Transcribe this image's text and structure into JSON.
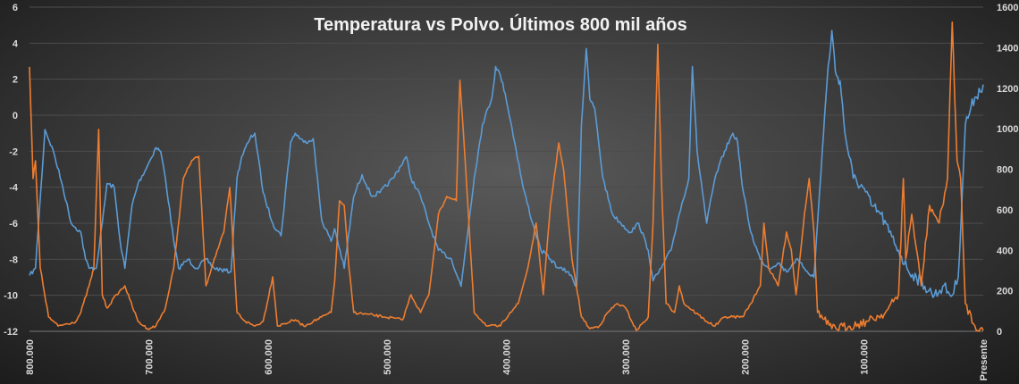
{
  "chart_data": {
    "type": "line",
    "title": "Temperatura vs Polvo.  Últimos 800 mil años",
    "xlabel": "",
    "ylabel": "",
    "x_tick_labels": [
      "800.000",
      "700.000",
      "600.000",
      "500.000",
      "400.000",
      "300.000",
      "200.000",
      "100.000",
      "Presente"
    ],
    "x_ticks": [
      800,
      700,
      600,
      500,
      400,
      300,
      200,
      100,
      0
    ],
    "xlim": [
      800,
      0
    ],
    "y_left": {
      "ylim": [
        -12,
        6
      ],
      "ticks": [
        -12,
        -10,
        -8,
        -6,
        -4,
        -2,
        0,
        2,
        4,
        6
      ]
    },
    "y_right": {
      "ylim": [
        0,
        1600
      ],
      "ticks": [
        0,
        200,
        400,
        600,
        800,
        1000,
        1200,
        1400,
        1600
      ]
    },
    "grid": true,
    "legend": "none",
    "colors": {
      "temperature": "#5b9bd5",
      "dust": "#ed7d31"
    },
    "series": [
      {
        "axis": "left",
        "color": "#5b9bd5",
        "x": [
          800,
          795,
          787,
          780,
          772,
          765,
          757,
          753,
          750,
          744,
          739,
          735,
          729,
          724,
          720,
          714,
          709,
          701,
          694,
          690,
          686,
          679,
          675,
          667,
          660,
          652,
          645,
          631,
          626,
          622,
          615,
          611,
          604,
          596,
          589,
          581,
          577,
          570,
          562,
          555,
          547,
          544,
          536,
          528,
          521,
          513,
          506,
          495,
          484,
          480,
          472,
          465,
          457,
          446,
          438,
          427,
          420,
          412,
          409,
          405,
          401,
          393,
          386,
          378,
          371,
          363,
          356,
          348,
          341,
          337,
          333,
          330,
          326,
          319,
          311,
          304,
          296,
          289,
          281,
          277,
          270,
          262,
          255,
          247,
          244,
          240,
          232,
          225,
          217,
          210,
          206,
          202,
          195,
          187,
          180,
          172,
          165,
          157,
          150,
          142,
          135,
          131,
          127,
          124,
          120,
          116,
          109,
          101,
          94,
          86,
          79,
          71,
          64,
          56,
          49,
          41,
          34,
          26,
          21,
          15,
          7,
          0
        ],
        "y": [
          -8.9,
          -8.5,
          -0.8,
          -2.0,
          -4.0,
          -6.0,
          -6.5,
          -8.0,
          -8.5,
          -8.5,
          -6.0,
          -3.8,
          -4.0,
          -7.0,
          -8.5,
          -5.0,
          -3.8,
          -2.8,
          -1.8,
          -2.0,
          -3.5,
          -7.0,
          -8.5,
          -8.0,
          -8.5,
          -8.0,
          -8.5,
          -8.7,
          -3.5,
          -2.3,
          -1.3,
          -1.0,
          -4.3,
          -6.0,
          -6.7,
          -1.5,
          -1.0,
          -1.5,
          -1.3,
          -5.8,
          -7.0,
          -6.3,
          -8.5,
          -4.5,
          -3.3,
          -4.5,
          -4.3,
          -3.5,
          -2.3,
          -3.5,
          -4.5,
          -6.0,
          -7.5,
          -8.0,
          -9.5,
          -3.5,
          -0.5,
          1.0,
          2.7,
          2.2,
          1.2,
          -1.5,
          -4.0,
          -6.0,
          -7.5,
          -8.0,
          -8.5,
          -8.7,
          -9.5,
          -0.5,
          3.7,
          0.9,
          0.4,
          -3.5,
          -5.5,
          -6.0,
          -6.5,
          -6.0,
          -7.5,
          -9.2,
          -8.5,
          -7.5,
          -5.5,
          -3.5,
          2.7,
          -2.0,
          -6.0,
          -3.5,
          -2.0,
          -1.0,
          -1.5,
          -4.0,
          -6.5,
          -8.0,
          -8.5,
          -8.2,
          -8.7,
          -8.0,
          -8.5,
          -9.0,
          -2.0,
          1.9,
          4.7,
          2.4,
          1.9,
          -1.0,
          -3.5,
          -4.0,
          -5.0,
          -5.5,
          -6.5,
          -7.5,
          -8.5,
          -9.0,
          -9.5,
          -10.0,
          -9.5,
          -10.0,
          -9.0,
          -0.5,
          1.0,
          1.7
        ]
      },
      {
        "axis": "right",
        "color": "#ed7d31",
        "x": [
          800,
          797,
          795,
          791,
          784,
          776,
          761,
          757,
          750,
          746,
          742,
          739,
          735,
          727,
          720,
          716,
          709,
          701,
          694,
          686,
          679,
          671,
          664,
          658,
          652,
          645,
          637,
          632,
          626,
          619,
          611,
          604,
          596,
          592,
          577,
          570,
          562,
          547,
          544,
          540,
          536,
          532,
          528,
          502,
          487,
          480,
          472,
          465,
          457,
          450,
          442,
          439,
          435,
          427,
          416,
          405,
          397,
          390,
          382,
          375,
          369,
          363,
          356,
          352,
          345,
          337,
          330,
          322,
          315,
          307,
          300,
          291,
          281,
          277,
          273,
          270,
          266,
          259,
          255,
          251,
          232,
          225,
          217,
          202,
          195,
          187,
          184,
          180,
          172,
          165,
          161,
          157,
          150,
          146,
          142,
          139,
          127,
          112,
          97,
          82,
          71,
          67,
          65,
          60,
          52,
          45,
          37,
          30,
          26,
          22,
          19,
          15,
          7,
          0
        ],
        "y": [
          1305,
          754,
          842,
          313,
          71,
          26,
          49,
          93,
          225,
          313,
          997,
          181,
          115,
          181,
          225,
          159,
          49,
          13,
          26,
          115,
          313,
          754,
          842,
          864,
          225,
          357,
          490,
          710,
          93,
          49,
          26,
          49,
          269,
          26,
          57,
          26,
          49,
          93,
          247,
          644,
          622,
          313,
          93,
          71,
          57,
          181,
          93,
          181,
          578,
          666,
          644,
          1239,
          886,
          93,
          26,
          26,
          93,
          137,
          313,
          534,
          181,
          622,
          930,
          798,
          357,
          71,
          13,
          26,
          93,
          137,
          115,
          4,
          71,
          534,
          1416,
          754,
          137,
          93,
          225,
          137,
          49,
          26,
          71,
          71,
          137,
          225,
          534,
          313,
          225,
          490,
          401,
          181,
          578,
          754,
          490,
          93,
          13,
          26,
          49,
          93,
          181,
          754,
          357,
          578,
          225,
          622,
          534,
          754,
          1526,
          842,
          754,
          137,
          26,
          4
        ]
      }
    ]
  }
}
